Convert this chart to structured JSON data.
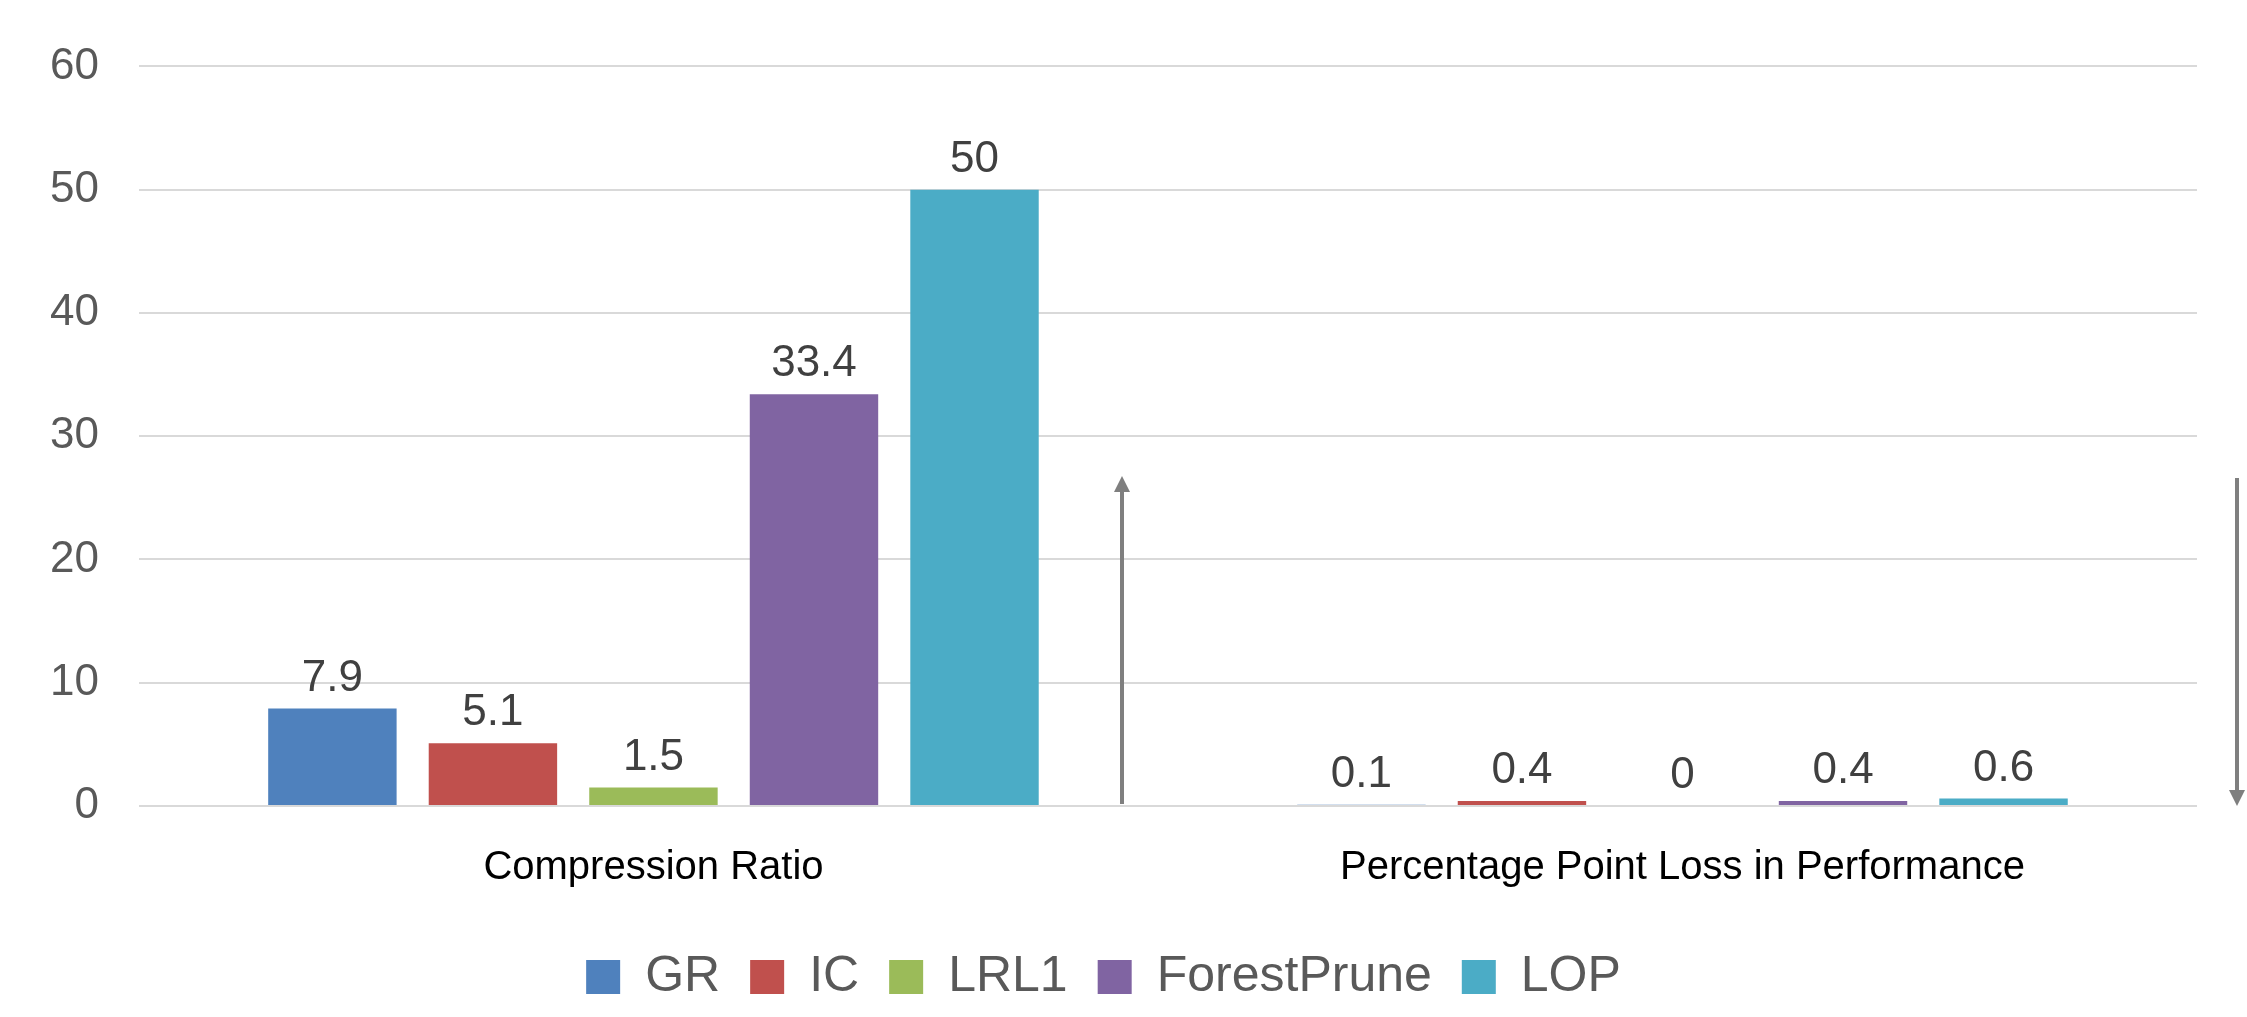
{
  "chart_data": {
    "type": "bar",
    "categories": [
      "Compression Ratio",
      "Percentage Point Loss in Performance"
    ],
    "series": [
      {
        "name": "GR",
        "color": "#4f81bd",
        "values": [
          7.9,
          0.1
        ]
      },
      {
        "name": "IC",
        "color": "#c0504d",
        "values": [
          5.1,
          0.4
        ]
      },
      {
        "name": "LRL1",
        "color": "#9bbb59",
        "values": [
          1.5,
          0
        ]
      },
      {
        "name": "ForestPrune",
        "color": "#8064a2",
        "values": [
          33.4,
          0.4
        ]
      },
      {
        "name": "LOP",
        "color": "#4bacc6",
        "values": [
          50,
          0.6
        ]
      }
    ],
    "ylim": [
      0,
      60
    ],
    "yticks": [
      0,
      10,
      20,
      30,
      40,
      50,
      60
    ],
    "grid": "y",
    "legend": "bottom",
    "data_labels": true
  }
}
